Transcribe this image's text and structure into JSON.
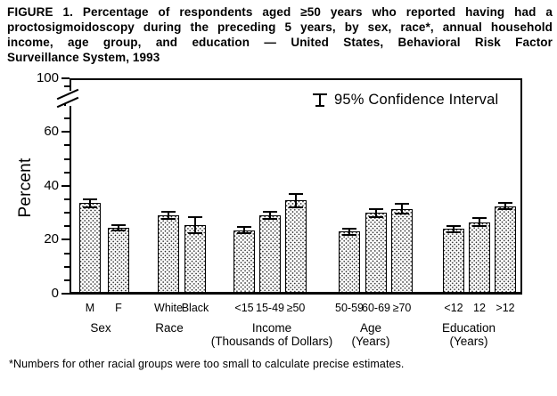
{
  "title": {
    "lines": [
      "FIGURE 1. Percentage of respondents aged ≥50 years who reported having had a",
      "proctosigmoidoscopy during the preceding 5 years, by sex, race*, annual household",
      "income, age group, and education — United States, Behavioral Risk Factor",
      "Surveillance System, 1993"
    ]
  },
  "chart": {
    "y_axis_label": "Percent",
    "legend_label": "95% Confidence Interval"
  },
  "footnote": "*Numbers for other racial groups were too small to calculate precise estimates.",
  "colors": {
    "ink": "#000000",
    "background": "#ffffff"
  },
  "chart_data": {
    "type": "bar",
    "title": "Percentage of respondents aged ≥50 years who reported having had a proctosigmoidoscopy during the preceding 5 years — United States, BRFSS, 1993",
    "xlabel": "",
    "ylabel": "Percent",
    "ylim": [
      0,
      100
    ],
    "axis_break": {
      "between": [
        70,
        100
      ]
    },
    "grid": false,
    "legend_position": "top-right",
    "legend": "95% Confidence Interval",
    "error_bars": "95% CI",
    "y_axis": {
      "major_ticks": [
        0,
        20,
        40,
        60,
        100
      ],
      "minor_tick_interval": 5,
      "minor_ticks": [
        5,
        10,
        15,
        25,
        30,
        35,
        45,
        50,
        55,
        65,
        70
      ]
    },
    "groups": [
      {
        "label": "Sex",
        "sublabel": "",
        "categories": [
          "M",
          "F"
        ],
        "values": [
          33.5,
          24.5
        ],
        "ci_half_width": [
          1.5,
          1.0
        ]
      },
      {
        "label": "Race",
        "sublabel": "",
        "categories": [
          "White",
          "Black"
        ],
        "values": [
          29.0,
          25.5
        ],
        "ci_half_width": [
          1.4,
          3.0
        ]
      },
      {
        "label": "Income",
        "sublabel": "(Thousands of Dollars)",
        "categories": [
          "<15",
          "15-49",
          "≥50"
        ],
        "values": [
          23.5,
          29.0,
          34.5
        ],
        "ci_half_width": [
          1.2,
          1.2,
          2.5
        ]
      },
      {
        "label": "Age",
        "sublabel": "(Years)",
        "categories": [
          "50-59",
          "60-69",
          "≥70"
        ],
        "values": [
          23.0,
          30.0,
          31.5
        ],
        "ci_half_width": [
          1.2,
          1.5,
          1.7
        ]
      },
      {
        "label": "Education",
        "sublabel": "(Years)",
        "categories": [
          "<12",
          "12",
          ">12"
        ],
        "values": [
          24.0,
          26.5,
          32.5
        ],
        "ci_half_width": [
          1.2,
          1.5,
          1.2
        ]
      }
    ]
  }
}
